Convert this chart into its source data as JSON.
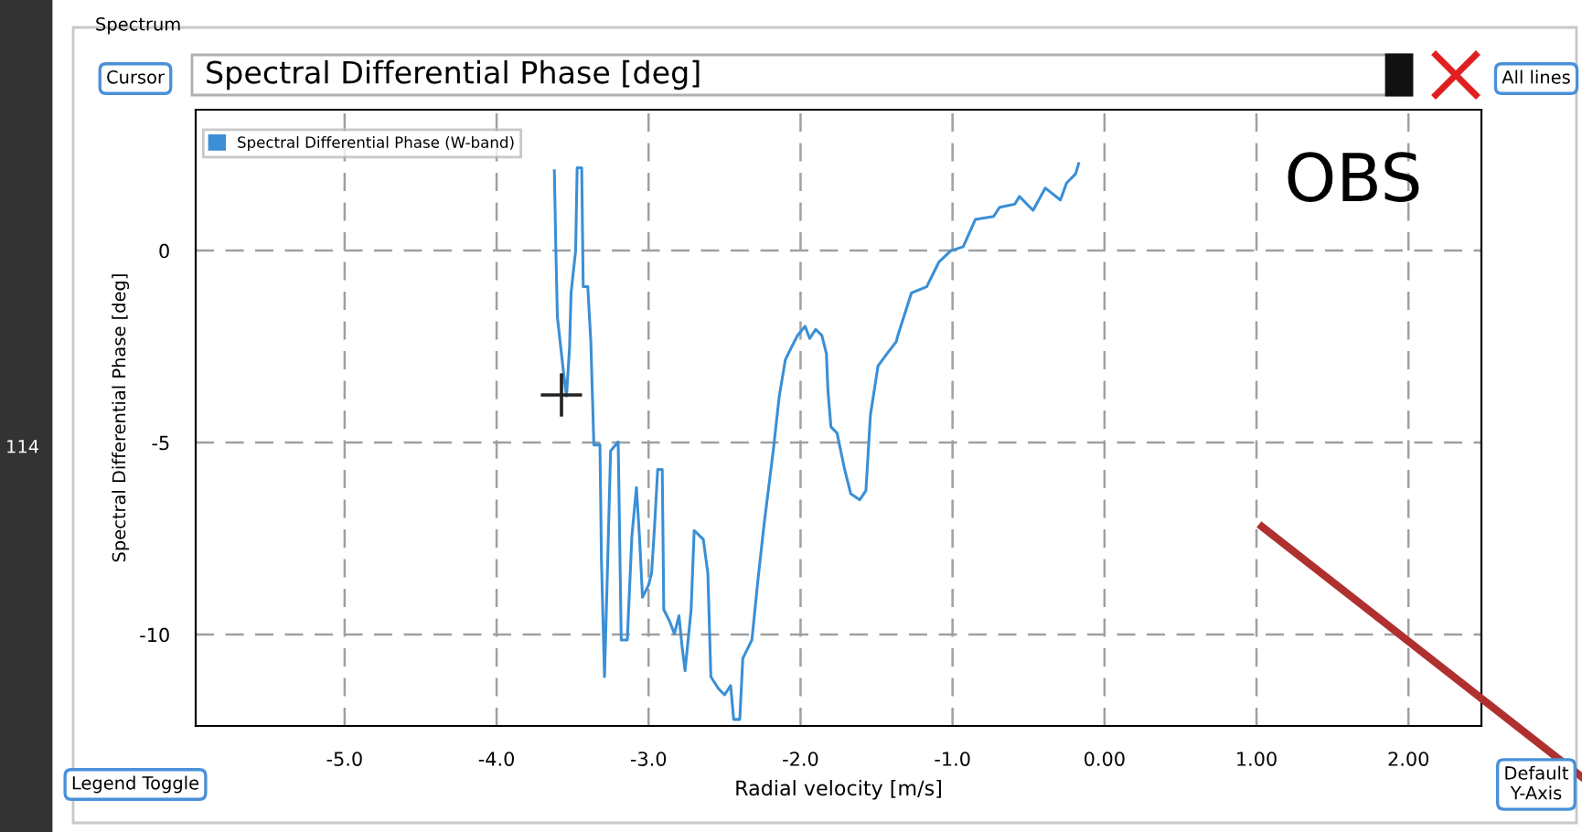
{
  "chart_data": {
    "type": "line",
    "title": "Spectral Differential Phase [deg]",
    "xlabel": "Radial velocity [m/s]",
    "ylabel": "Spectral Differential Phase [deg]",
    "annotations": [
      "Spectrum",
      "Cursor",
      "All lines",
      "Legend Toggle",
      "Default Y-Axis",
      "OBS",
      "114"
    ],
    "series": [
      {
        "name": "Spectral Differential Phase (W-band)",
        "color": "#3a8fd6",
        "x": [
          -3.62,
          -3.61,
          -3.6,
          -3.56,
          -3.54,
          -3.52,
          -3.51,
          -3.48,
          -3.47,
          -3.44,
          -3.43,
          -3.4,
          -3.38,
          -3.36,
          -3.32,
          -3.31,
          -3.29,
          -3.27,
          -3.25,
          -3.2,
          -3.18,
          -3.14,
          -3.11,
          -3.08,
          -3.06,
          -3.04,
          -3.0,
          -2.98,
          -2.96,
          -2.94,
          -2.91,
          -2.9,
          -2.86,
          -2.83,
          -2.8,
          -2.78,
          -2.76,
          -2.72,
          -2.7,
          -2.64,
          -2.61,
          -2.59,
          -2.54,
          -2.5,
          -2.46,
          -2.44,
          -2.4,
          -2.38,
          -2.32,
          -2.28,
          -2.24,
          -2.18,
          -2.14,
          -2.1,
          -2.06,
          -2.02,
          -1.97,
          -1.94,
          -1.9,
          -1.86,
          -1.83,
          -1.82,
          -1.8,
          -1.76,
          -1.71,
          -1.67,
          -1.61,
          -1.57,
          -1.54,
          -1.49,
          -1.43,
          -1.37,
          -1.36,
          -1.27,
          -1.17,
          -1.09,
          -1.01,
          -0.93,
          -0.85,
          -0.73,
          -0.69,
          -0.59,
          -0.56,
          -0.47,
          -0.39,
          -0.29,
          -0.25,
          -0.19,
          -0.17
        ],
        "values": [
          2.08,
          0.0,
          -1.73,
          -3.16,
          -3.79,
          -2.52,
          -1.1,
          0.0,
          2.16,
          2.16,
          -0.94,
          -0.94,
          -2.37,
          -5.06,
          -5.06,
          -8.08,
          -11.1,
          -8.24,
          -5.22,
          -4.98,
          -10.14,
          -10.14,
          -7.44,
          -6.17,
          -7.44,
          -9.03,
          -8.71,
          -8.4,
          -7.13,
          -5.7,
          -5.7,
          -9.35,
          -9.67,
          -9.98,
          -9.51,
          -10.3,
          -10.94,
          -9.35,
          -7.29,
          -7.52,
          -8.4,
          -11.1,
          -11.41,
          -11.57,
          -11.33,
          -12.21,
          -12.21,
          -10.62,
          -10.14,
          -8.56,
          -7.13,
          -5.22,
          -3.79,
          -2.84,
          -2.52,
          -2.21,
          -1.97,
          -2.29,
          -2.05,
          -2.21,
          -2.68,
          -3.63,
          -4.59,
          -4.75,
          -5.7,
          -6.33,
          -6.49,
          -6.25,
          -4.27,
          -3.0,
          -2.68,
          -2.37,
          -2.21,
          -1.1,
          -0.94,
          -0.3,
          0.0,
          0.1,
          0.81,
          0.89,
          1.13,
          1.21,
          1.41,
          1.05,
          1.63,
          1.32,
          1.76,
          2.0,
          2.27
        ]
      }
    ],
    "xlim": [
      -5.98,
      2.48
    ],
    "ylim": [
      -12.38,
      3.67
    ],
    "xticks": [
      {
        "value": -5,
        "label": "-5.0"
      },
      {
        "value": -4,
        "label": "-4.0"
      },
      {
        "value": -3,
        "label": "-3.0"
      },
      {
        "value": -2,
        "label": "-2.0"
      },
      {
        "value": -1,
        "label": "-1.0"
      },
      {
        "value": 0,
        "label": "0.00"
      },
      {
        "value": 1,
        "label": "1.00"
      },
      {
        "value": 2,
        "label": "2.00"
      }
    ],
    "yticks": [
      -10,
      -5,
      0
    ],
    "grid": true,
    "legend": "top left",
    "line_style": "solid",
    "marker": "none"
  }
}
